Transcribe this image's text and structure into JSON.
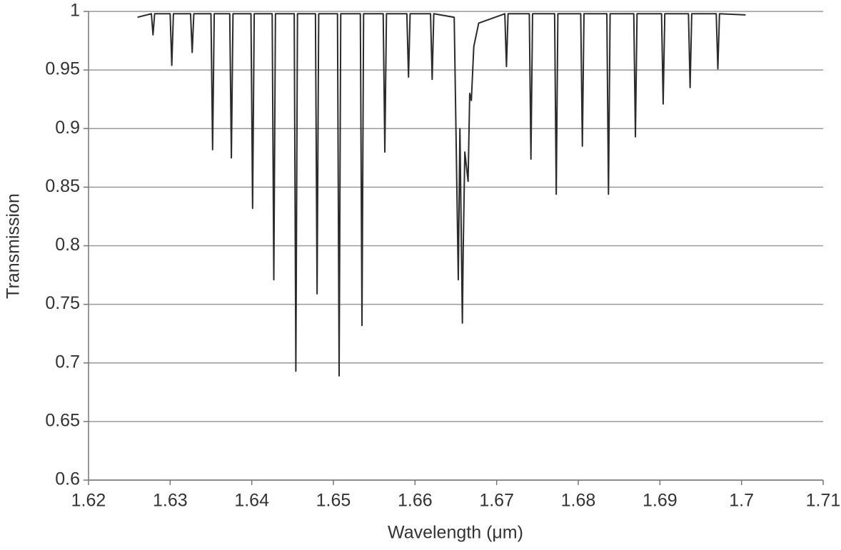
{
  "chart_data": {
    "type": "line",
    "x_label": "Wavelength (μm)",
    "y_label": "Transmission",
    "x": [
      1.626,
      1.6277,
      1.6279,
      1.6281,
      1.63,
      1.6302,
      1.6304,
      1.6325,
      1.6327,
      1.6329,
      1.635,
      1.6352,
      1.6354,
      1.6373,
      1.6375,
      1.6377,
      1.6399,
      1.6401,
      1.6403,
      1.6425,
      1.6427,
      1.6429,
      1.6452,
      1.6454,
      1.6456,
      1.6478,
      1.648,
      1.6482,
      1.6505,
      1.6507,
      1.6509,
      1.6533,
      1.6535,
      1.6537,
      1.6561,
      1.6563,
      1.6565,
      1.659,
      1.6592,
      1.6594,
      1.6619,
      1.6621,
      1.6623,
      1.6648,
      1.6653,
      1.6655,
      1.6658,
      1.6659,
      1.6661,
      1.6665,
      1.6667,
      1.6669,
      1.6672,
      1.6678,
      1.671,
      1.6712,
      1.6714,
      1.674,
      1.6742,
      1.6744,
      1.6771,
      1.6773,
      1.6775,
      1.6803,
      1.6805,
      1.6807,
      1.6835,
      1.6837,
      1.6839,
      1.6868,
      1.687,
      1.6872,
      1.6902,
      1.6904,
      1.6906,
      1.6935,
      1.6937,
      1.6939,
      1.6969,
      1.6971,
      1.6973,
      1.7005
    ],
    "values": [
      0.995,
      0.998,
      0.98,
      0.998,
      0.998,
      0.954,
      0.998,
      0.998,
      0.965,
      0.998,
      0.998,
      0.882,
      0.998,
      0.998,
      0.875,
      0.998,
      0.998,
      0.832,
      0.998,
      0.998,
      0.771,
      0.998,
      0.998,
      0.693,
      0.998,
      0.998,
      0.759,
      0.998,
      0.998,
      0.689,
      0.998,
      0.998,
      0.732,
      0.998,
      0.998,
      0.88,
      0.998,
      0.998,
      0.944,
      0.998,
      0.998,
      0.942,
      0.998,
      0.995,
      0.771,
      0.9,
      0.734,
      0.795,
      0.88,
      0.855,
      0.93,
      0.924,
      0.97,
      0.99,
      0.998,
      0.953,
      0.998,
      0.998,
      0.874,
      0.998,
      0.998,
      0.844,
      0.998,
      0.998,
      0.885,
      0.998,
      0.998,
      0.844,
      0.998,
      0.998,
      0.893,
      0.998,
      0.998,
      0.921,
      0.998,
      0.998,
      0.935,
      0.998,
      0.998,
      0.951,
      0.998,
      0.997
    ],
    "color": "#2b2b2b",
    "xlim": [
      1.62,
      1.71
    ],
    "xticks": [
      1.62,
      1.63,
      1.64,
      1.65,
      1.66,
      1.67,
      1.68,
      1.69,
      1.7,
      1.71
    ],
    "ylim": [
      0.6,
      1
    ],
    "yticks": [
      0.6,
      0.65,
      0.7,
      0.75,
      0.8,
      0.85,
      0.9,
      0.95,
      1
    ],
    "grid": true
  }
}
